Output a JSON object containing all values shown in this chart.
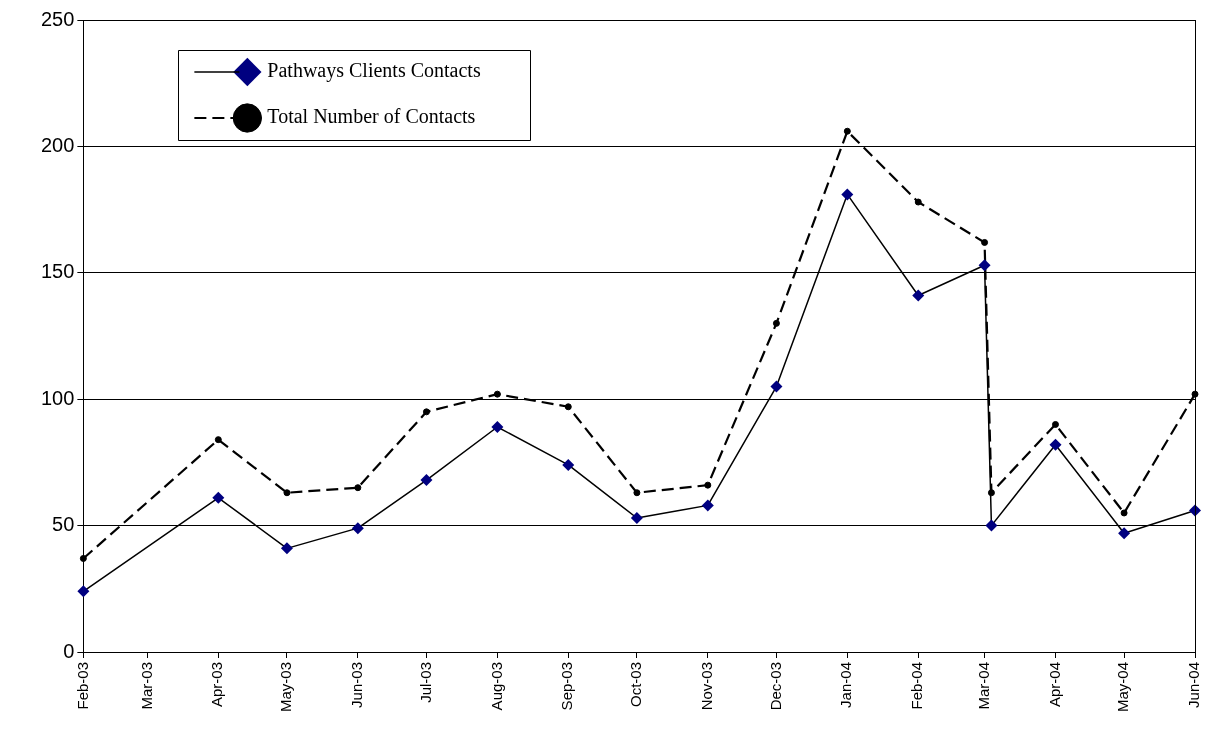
{
  "chart_data": {
    "type": "line",
    "xlim": [
      "2003-02",
      "2004-06"
    ],
    "xticks": [
      {
        "value": "2003-02",
        "label": "Feb-03"
      },
      {
        "value": "2003-03",
        "label": "Mar-03"
      },
      {
        "value": "2003-04",
        "label": "Apr-03"
      },
      {
        "value": "2003-05",
        "label": "May-03"
      },
      {
        "value": "2003-06",
        "label": "Jun-03"
      },
      {
        "value": "2003-07",
        "label": "Jul-03"
      },
      {
        "value": "2003-08",
        "label": "Aug-03"
      },
      {
        "value": "2003-09",
        "label": "Sep-03"
      },
      {
        "value": "2003-10",
        "label": "Oct-03"
      },
      {
        "value": "2003-11",
        "label": "Nov-03"
      },
      {
        "value": "2003-12",
        "label": "Dec-03"
      },
      {
        "value": "2004-01",
        "label": "Jan-04"
      },
      {
        "value": "2004-02",
        "label": "Feb-04"
      },
      {
        "value": "2004-03",
        "label": "Mar-04"
      },
      {
        "value": "2004-04",
        "label": "Apr-04"
      },
      {
        "value": "2004-05",
        "label": "May-04"
      },
      {
        "value": "2004-06",
        "label": "Jun-04"
      }
    ],
    "ylim": [
      0,
      250
    ],
    "yticks": [
      0,
      50,
      100,
      150,
      200,
      250
    ],
    "grid": "y",
    "legend": "top left",
    "series": [
      {
        "name": "Pathways Clients Contacts",
        "color": "#000080",
        "marker": "diamond",
        "line_style": "solid",
        "x": [
          "2003-02",
          "2003-04",
          "2003-05",
          "2003-06",
          "2003-07",
          "2003-08",
          "2003-09",
          "2003-10",
          "2003-11",
          "2003-12",
          "2004-01",
          "2004-02",
          "2004-03-01",
          "2004-03-04",
          "2004-04",
          "2004-05",
          "2004-06"
        ],
        "values": [
          24,
          61,
          41,
          49,
          68,
          89,
          74,
          53,
          58,
          105,
          181,
          141,
          153,
          50,
          82,
          47,
          56
        ]
      },
      {
        "name": "Total Number of Contacts",
        "color": "#000000",
        "marker": "circle",
        "line_style": "dashed",
        "x": [
          "2003-02",
          "2003-04",
          "2003-05",
          "2003-06",
          "2003-07",
          "2003-08",
          "2003-09",
          "2003-10",
          "2003-11",
          "2003-12",
          "2004-01",
          "2004-02",
          "2004-03-01",
          "2004-03-04",
          "2004-04",
          "2004-05",
          "2004-06"
        ],
        "values": [
          37,
          84,
          63,
          65,
          95,
          102,
          97,
          63,
          66,
          130,
          206,
          178,
          162,
          63,
          90,
          55,
          102
        ]
      }
    ]
  }
}
